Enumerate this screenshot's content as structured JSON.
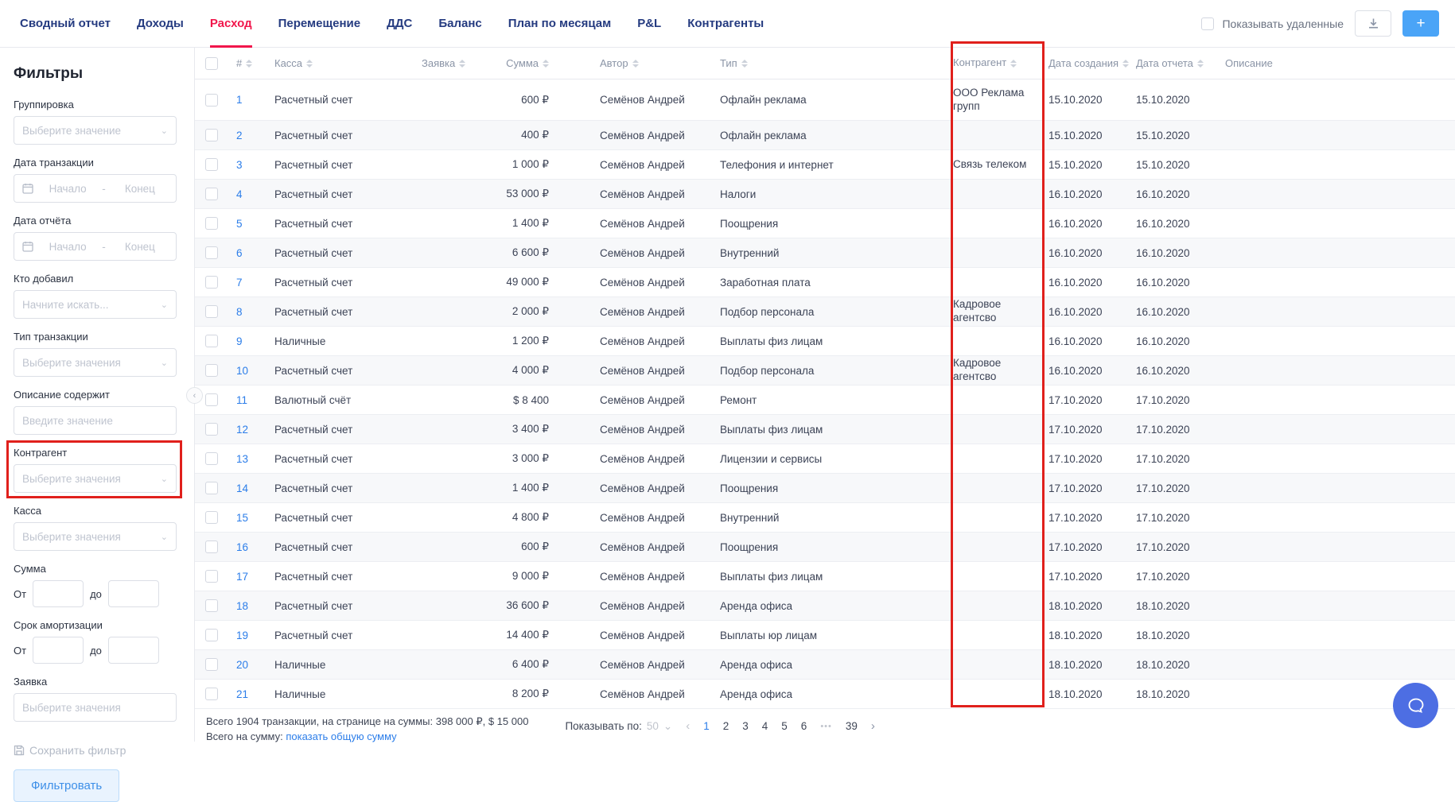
{
  "colors": {
    "accent_red": "#f1164b",
    "link_blue": "#2b7de9",
    "annotation_red": "#e0201c",
    "plus_blue": "#4aa4f7",
    "chat_blue": "#4d6ee3"
  },
  "nav": {
    "tabs": [
      {
        "label": "Сводный отчет",
        "active": false
      },
      {
        "label": "Доходы",
        "active": false
      },
      {
        "label": "Расход",
        "active": true
      },
      {
        "label": "Перемещение",
        "active": false
      },
      {
        "label": "ДДС",
        "active": false
      },
      {
        "label": "Баланс",
        "active": false
      },
      {
        "label": "План по месяцам",
        "active": false
      },
      {
        "label": "P&L",
        "active": false
      },
      {
        "label": "Контрагенты",
        "active": false
      }
    ],
    "show_deleted_label": "Показывать удаленные",
    "show_deleted_checked": false,
    "plus_button_label": "+"
  },
  "filters": {
    "title": "Фильтры",
    "grouping": {
      "label": "Группировка",
      "placeholder": "Выберите значение"
    },
    "transaction_date": {
      "label": "Дата транзакции",
      "start": "Начало",
      "separator": "-",
      "end": "Конец"
    },
    "report_date": {
      "label": "Дата отчёта",
      "start": "Начало",
      "separator": "-",
      "end": "Конец"
    },
    "added_by": {
      "label": "Кто добавил",
      "placeholder": "Начните искать..."
    },
    "transaction_type": {
      "label": "Тип транзакции",
      "placeholder": "Выберите значения"
    },
    "description_contains": {
      "label": "Описание содержит",
      "placeholder": "Введите значение"
    },
    "counterparty": {
      "label": "Контрагент",
      "placeholder": "Выберите значения",
      "highlighted": true
    },
    "cash_account": {
      "label": "Касса",
      "placeholder": "Выберите значения"
    },
    "amount": {
      "label": "Сумма",
      "from": "От",
      "to": "до"
    },
    "amortization": {
      "label": "Срок амортизации",
      "from": "От",
      "to": "до"
    },
    "request": {
      "label": "Заявка",
      "placeholder": "Выберите значения"
    },
    "save_filter_label": "Сохранить фильтр",
    "apply_button_label": "Фильтровать"
  },
  "table": {
    "columns": [
      {
        "label": "",
        "type": "checkbox",
        "sortable": false
      },
      {
        "label": "#",
        "sortable": true
      },
      {
        "label": "Касса",
        "sortable": true
      },
      {
        "label": "Заявка",
        "sortable": true
      },
      {
        "label": "Сумма",
        "sortable": true
      },
      {
        "label": "Автор",
        "sortable": true
      },
      {
        "label": "Тип",
        "sortable": true
      },
      {
        "label": "Контрагент",
        "sortable": true
      },
      {
        "label": "Дата создания",
        "sortable": true
      },
      {
        "label": "Дата отчета",
        "sortable": true
      },
      {
        "label": "Описание",
        "sortable": false
      }
    ],
    "rows": [
      [
        "1",
        "Расчетный счет",
        "",
        "600 ₽",
        "Семёнов Андрей",
        "Офлайн реклама",
        "ООО Реклама групп",
        "15.10.2020",
        "15.10.2020",
        ""
      ],
      [
        "2",
        "Расчетный счет",
        "",
        "400 ₽",
        "Семёнов Андрей",
        "Офлайн реклама",
        "",
        "15.10.2020",
        "15.10.2020",
        ""
      ],
      [
        "3",
        "Расчетный счет",
        "",
        "1 000 ₽",
        "Семёнов Андрей",
        "Телефония и интернет",
        "Связь телеком",
        "15.10.2020",
        "15.10.2020",
        ""
      ],
      [
        "4",
        "Расчетный счет",
        "",
        "53 000 ₽",
        "Семёнов Андрей",
        "Налоги",
        "",
        "16.10.2020",
        "16.10.2020",
        ""
      ],
      [
        "5",
        "Расчетный счет",
        "",
        "1 400 ₽",
        "Семёнов Андрей",
        "Поощрения",
        "",
        "16.10.2020",
        "16.10.2020",
        ""
      ],
      [
        "6",
        "Расчетный счет",
        "",
        "6 600 ₽",
        "Семёнов Андрей",
        "Внутренний",
        "",
        "16.10.2020",
        "16.10.2020",
        ""
      ],
      [
        "7",
        "Расчетный счет",
        "",
        "49 000 ₽",
        "Семёнов Андрей",
        "Заработная плата",
        "",
        "16.10.2020",
        "16.10.2020",
        ""
      ],
      [
        "8",
        "Расчетный счет",
        "",
        "2 000 ₽",
        "Семёнов Андрей",
        "Подбор персонала",
        "Кадровое агентсво",
        "16.10.2020",
        "16.10.2020",
        ""
      ],
      [
        "9",
        "Наличные",
        "",
        "1 200 ₽",
        "Семёнов Андрей",
        "Выплаты физ лицам",
        "",
        "16.10.2020",
        "16.10.2020",
        ""
      ],
      [
        "10",
        "Расчетный счет",
        "",
        "4 000 ₽",
        "Семёнов Андрей",
        "Подбор персонала",
        "Кадровое агентсво",
        "16.10.2020",
        "16.10.2020",
        ""
      ],
      [
        "11",
        "Валютный счёт",
        "",
        "$ 8 400",
        "Семёнов Андрей",
        "Ремонт",
        "",
        "17.10.2020",
        "17.10.2020",
        ""
      ],
      [
        "12",
        "Расчетный счет",
        "",
        "3 400 ₽",
        "Семёнов Андрей",
        "Выплаты физ лицам",
        "",
        "17.10.2020",
        "17.10.2020",
        ""
      ],
      [
        "13",
        "Расчетный счет",
        "",
        "3 000 ₽",
        "Семёнов Андрей",
        "Лицензии и сервисы",
        "",
        "17.10.2020",
        "17.10.2020",
        ""
      ],
      [
        "14",
        "Расчетный счет",
        "",
        "1 400 ₽",
        "Семёнов Андрей",
        "Поощрения",
        "",
        "17.10.2020",
        "17.10.2020",
        ""
      ],
      [
        "15",
        "Расчетный счет",
        "",
        "4 800 ₽",
        "Семёнов Андрей",
        "Внутренний",
        "",
        "17.10.2020",
        "17.10.2020",
        ""
      ],
      [
        "16",
        "Расчетный счет",
        "",
        "600 ₽",
        "Семёнов Андрей",
        "Поощрения",
        "",
        "17.10.2020",
        "17.10.2020",
        ""
      ],
      [
        "17",
        "Расчетный счет",
        "",
        "9 000 ₽",
        "Семёнов Андрей",
        "Выплаты физ лицам",
        "",
        "17.10.2020",
        "17.10.2020",
        ""
      ],
      [
        "18",
        "Расчетный счет",
        "",
        "36 600 ₽",
        "Семёнов Андрей",
        "Аренда офиса",
        "",
        "18.10.2020",
        "18.10.2020",
        ""
      ],
      [
        "19",
        "Расчетный счет",
        "",
        "14 400 ₽",
        "Семёнов Андрей",
        "Выплаты юр лицам",
        "",
        "18.10.2020",
        "18.10.2020",
        ""
      ],
      [
        "20",
        "Наличные",
        "",
        "6 400 ₽",
        "Семёнов Андрей",
        "Аренда офиса",
        "",
        "18.10.2020",
        "18.10.2020",
        ""
      ],
      [
        "21",
        "Наличные",
        "",
        "8 200 ₽",
        "Семёнов Андрей",
        "Аренда офиса",
        "",
        "18.10.2020",
        "18.10.2020",
        ""
      ]
    ]
  },
  "footer": {
    "summary_line1": "Всего 1904 транзакции, на странице на суммы: 398 000 ₽, $ 15 000",
    "summary_line2_prefix": "Всего на сумму: ",
    "summary_line2_link": "показать общую сумму",
    "per_page_label": "Показывать по:",
    "per_page_value": "50",
    "prev_arrow": "‹",
    "pages": [
      "1",
      "2",
      "3",
      "4",
      "5",
      "6"
    ],
    "active_page": "1",
    "ellipsis": "•••",
    "last_page": "39",
    "next_arrow": "›"
  }
}
